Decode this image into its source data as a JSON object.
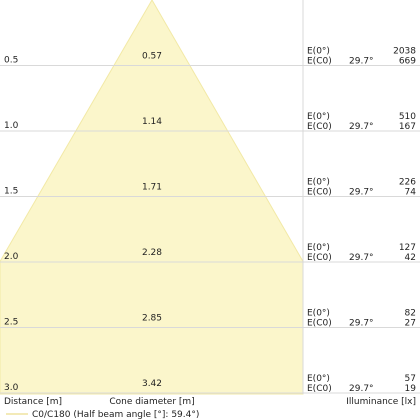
{
  "chart_data": {
    "type": "table",
    "colors": {
      "beam_fill": "#fbf6cb",
      "beam_stroke": "#f2e9a6",
      "grid": "#d9d9d9",
      "legend_line": "#efe3a0",
      "text": "#222222"
    },
    "rows": [
      {
        "distance": "0.5",
        "cone": "0.57",
        "e0": "2038",
        "ec0": "669"
      },
      {
        "distance": "1.0",
        "cone": "1.14",
        "e0": "510",
        "ec0": "167"
      },
      {
        "distance": "1.5",
        "cone": "1.71",
        "e0": "226",
        "ec0": "74"
      },
      {
        "distance": "2.0",
        "cone": "2.28",
        "e0": "127",
        "ec0": "42"
      },
      {
        "distance": "2.5",
        "cone": "2.85",
        "e0": "82",
        "ec0": "27"
      },
      {
        "distance": "3.0",
        "cone": "3.42",
        "e0": "57",
        "ec0": "19"
      }
    ],
    "row_label_e0": "E(0°)",
    "row_label_ec0": "E(C0)",
    "half_angle_label": "29.7°",
    "xlabel_left": "Distance [m]",
    "xlabel_mid": "Cone diameter [m]",
    "xlabel_right": "Illuminance [lx]",
    "legend": "C0/C180 (Half beam angle [°]: 59.4°)"
  }
}
